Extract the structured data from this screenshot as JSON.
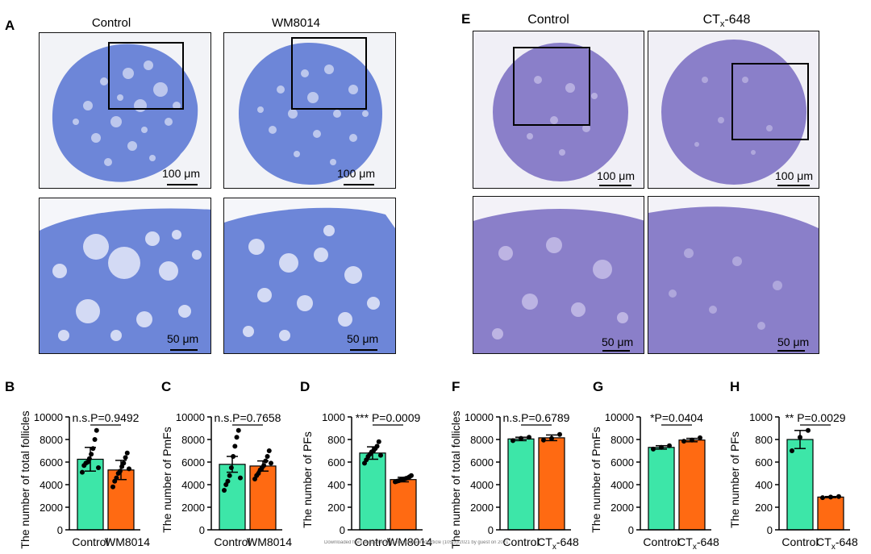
{
  "figure": {
    "panel_labels": {
      "A": "A",
      "B": "B",
      "C": "C",
      "D": "D",
      "E": "E",
      "F": "F",
      "G": "G",
      "H": "H"
    },
    "micrographs": {
      "left": {
        "col1": "Control",
        "col2": "WM8014"
      },
      "right": {
        "col1": "Control",
        "col2_main": "CT",
        "col2_sub": "x",
        "col2_tail": "-648"
      },
      "scale_top": "100 μm",
      "scale_bottom": "50 μm"
    },
    "watermark": "Downloaded from academic.oup.com/biolreprod/article (105/3)/2021 by guest on 2021"
  },
  "colors": {
    "control": "#3de6a8",
    "treatment": "#ff6a12",
    "tissue_left": "#6d86d8",
    "tissue_right": "#8a7fc9"
  },
  "chart_data": [
    {
      "id": "B",
      "type": "bar",
      "ylabel": "The number of total follicles",
      "ylim": [
        0,
        10000
      ],
      "yticks": [
        "0",
        "2000",
        "4000",
        "6000",
        "8000",
        "10000"
      ],
      "yvals": [
        0,
        2000,
        4000,
        6000,
        8000,
        10000
      ],
      "categories": [
        "Control",
        "WM8014"
      ],
      "values": [
        6250,
        5300
      ],
      "errors": [
        1050,
        850
      ],
      "points": [
        [
          5100,
          5700,
          5900,
          6000,
          6300,
          6700,
          7200,
          8000,
          8800,
          5500
        ],
        [
          3800,
          4300,
          4600,
          5000,
          5200,
          5600,
          5900,
          6400,
          6800,
          5400
        ]
      ],
      "annotation": "n.s.P=0.9492"
    },
    {
      "id": "C",
      "type": "bar",
      "ylabel": "The number of PmFs",
      "ylim": [
        0,
        10000
      ],
      "yticks": [
        "0",
        "2000",
        "4000",
        "6000",
        "8000",
        "10000"
      ],
      "yvals": [
        0,
        2000,
        4000,
        6000,
        8000,
        10000
      ],
      "categories": [
        "Control",
        "WM8014"
      ],
      "values": [
        5800,
        5650
      ],
      "errors": [
        700,
        450
      ],
      "points": [
        [
          3500,
          4000,
          4300,
          4800,
          5500,
          6500,
          7400,
          8200,
          8800,
          4600
        ],
        [
          4500,
          4800,
          5000,
          5300,
          5500,
          5700,
          6100,
          6500,
          7000,
          5900
        ]
      ],
      "annotation": "n.s.P=0.7658"
    },
    {
      "id": "D",
      "type": "bar",
      "ylabel": "The number of PFs",
      "ylim": [
        0,
        1000
      ],
      "yticks": [
        "0",
        "200",
        "400",
        "600",
        "800",
        "1000"
      ],
      "yvals": [
        0,
        200,
        400,
        600,
        800,
        1000
      ],
      "categories": [
        "Control",
        "WM8014"
      ],
      "values": [
        680,
        445
      ],
      "errors": [
        55,
        20
      ],
      "points": [
        [
          590,
          620,
          650,
          670,
          690,
          700,
          720,
          740,
          780,
          660
        ],
        [
          425,
          430,
          435,
          440,
          445,
          450,
          455,
          460,
          470,
          480
        ]
      ],
      "annotation": "*** P=0.0009"
    },
    {
      "id": "F",
      "type": "bar",
      "ylabel": "The number of total follicles",
      "ylim": [
        0,
        10000
      ],
      "yticks": [
        "0",
        "2000",
        "4000",
        "6000",
        "8000",
        "10000"
      ],
      "yvals": [
        0,
        2000,
        4000,
        6000,
        8000,
        10000
      ],
      "categories": [
        "Control",
        "CTx-648"
      ],
      "cat2": {
        "main": "CT",
        "sub": "x",
        "tail": "-648"
      },
      "values": [
        8050,
        8150
      ],
      "errors": [
        150,
        250
      ],
      "points": [
        [
          7900,
          8100,
          8200
        ],
        [
          7950,
          8100,
          8450
        ]
      ],
      "annotation": "n.s.P=0.6789"
    },
    {
      "id": "G",
      "type": "bar",
      "ylabel": "The number of PmFs",
      "ylim": [
        0,
        10000
      ],
      "yticks": [
        "0",
        "2000",
        "4000",
        "6000",
        "8000",
        "10000"
      ],
      "yvals": [
        0,
        2000,
        4000,
        6000,
        8000,
        10000
      ],
      "categories": [
        "Control",
        "CTx-648"
      ],
      "cat2": {
        "main": "CT",
        "sub": "x",
        "tail": "-648"
      },
      "values": [
        7300,
        7950
      ],
      "errors": [
        150,
        150
      ],
      "points": [
        [
          7150,
          7300,
          7450
        ],
        [
          7850,
          7950,
          8150
        ]
      ],
      "annotation": "*P=0.0404"
    },
    {
      "id": "H",
      "type": "bar",
      "ylabel": "The number of PFs",
      "ylim": [
        0,
        1000
      ],
      "yticks": [
        "0",
        "200",
        "400",
        "600",
        "800",
        "1000"
      ],
      "yvals": [
        0,
        200,
        400,
        600,
        800,
        1000
      ],
      "categories": [
        "Control",
        "CTx-648"
      ],
      "cat2": {
        "main": "CT",
        "sub": "x",
        "tail": "-648"
      },
      "values": [
        800,
        290
      ],
      "errors": [
        80,
        5
      ],
      "points": [
        [
          700,
          820,
          880
        ],
        [
          285,
          290,
          295
        ]
      ],
      "annotation": "** P=0.0029"
    }
  ]
}
